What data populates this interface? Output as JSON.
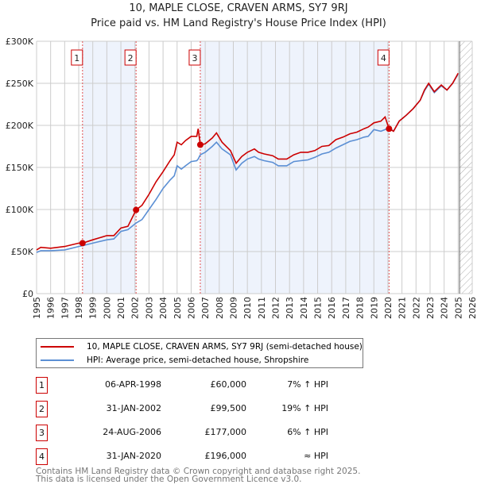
{
  "chart_data": {
    "type": "line",
    "title": "10, MAPLE CLOSE, CRAVEN ARMS, SY7 9RJ",
    "subtitle": "Price paid vs. HM Land Registry's House Price Index (HPI)",
    "xlim": [
      1995,
      2026
    ],
    "ylim": [
      0,
      300000
    ],
    "y_ticks": [
      {
        "v": 0,
        "label": "£0"
      },
      {
        "v": 50000,
        "label": "£50K"
      },
      {
        "v": 100000,
        "label": "£100K"
      },
      {
        "v": 150000,
        "label": "£150K"
      },
      {
        "v": 200000,
        "label": "£200K"
      },
      {
        "v": 250000,
        "label": "£250K"
      },
      {
        "v": 300000,
        "label": "£300K"
      }
    ],
    "x_ticks": [
      "1995",
      "1996",
      "1997",
      "1998",
      "1999",
      "2000",
      "2001",
      "2002",
      "2003",
      "2004",
      "2005",
      "2006",
      "2007",
      "2008",
      "2009",
      "2010",
      "2011",
      "2012",
      "2013",
      "2014",
      "2015",
      "2016",
      "2017",
      "2018",
      "2019",
      "2020",
      "2021",
      "2022",
      "2023",
      "2024",
      "2025",
      "2026"
    ],
    "forecast_start": 2025.1,
    "series": [
      {
        "name": "10, MAPLE CLOSE, CRAVEN ARMS, SY7 9RJ (semi-detached house)",
        "color": "#cc0000",
        "x": [
          1995,
          1995.3,
          1996,
          1997,
          1997.5,
          1998,
          1998.27,
          1999,
          2000,
          2000.5,
          2001,
          2001.5,
          2002.08,
          2002.5,
          2003,
          2003.5,
          2004,
          2004.5,
          2004.8,
          2005,
          2005.3,
          2005.6,
          2006,
          2006.4,
          2006.5,
          2006.65,
          2007,
          2007.5,
          2007.8,
          2008.2,
          2008.8,
          2009.2,
          2009.6,
          2010,
          2010.5,
          2010.8,
          2011.2,
          2011.8,
          2012.2,
          2012.8,
          2013.3,
          2013.8,
          2014.3,
          2014.8,
          2015.3,
          2015.8,
          2016.3,
          2016.8,
          2017.3,
          2017.8,
          2018.3,
          2018.6,
          2019,
          2019.5,
          2019.8,
          2020.08,
          2020.4,
          2020.8,
          2021.3,
          2021.8,
          2022.3,
          2022.6,
          2022.9,
          2023.3,
          2023.8,
          2024.2,
          2024.6,
          2025.0
        ],
        "y": [
          52000,
          55000,
          54000,
          56000,
          58000,
          60000,
          60000,
          64000,
          69000,
          69000,
          78000,
          80000,
          99500,
          105000,
          118000,
          133000,
          145000,
          158000,
          165000,
          180000,
          177000,
          182000,
          187000,
          187000,
          196000,
          177000,
          178000,
          185000,
          191000,
          180000,
          170000,
          155000,
          163000,
          168000,
          172000,
          168000,
          166000,
          164000,
          160000,
          160000,
          165000,
          168000,
          168000,
          170000,
          175000,
          176000,
          183000,
          186000,
          190000,
          192000,
          196000,
          198000,
          203000,
          205000,
          210000,
          196000,
          193000,
          205000,
          212000,
          220000,
          230000,
          242000,
          250000,
          240000,
          248000,
          242000,
          250000,
          262000
        ]
      },
      {
        "name": "HPI: Average price, semi-detached house, Shropshire",
        "color": "#5b8fd4",
        "x": [
          1995,
          1995.3,
          1996,
          1997,
          1997.5,
          1998,
          1998.27,
          1999,
          2000,
          2000.5,
          2001,
          2001.5,
          2002.08,
          2002.5,
          2003,
          2003.5,
          2004,
          2004.5,
          2004.8,
          2005,
          2005.3,
          2005.6,
          2006,
          2006.4,
          2006.5,
          2006.65,
          2007,
          2007.5,
          2007.8,
          2008.2,
          2008.8,
          2009.2,
          2009.6,
          2010,
          2010.5,
          2010.8,
          2011.2,
          2011.8,
          2012.2,
          2012.8,
          2013.3,
          2013.8,
          2014.3,
          2014.8,
          2015.3,
          2015.8,
          2016.3,
          2016.8,
          2017.3,
          2017.8,
          2018.3,
          2018.6,
          2019,
          2019.5,
          2019.8,
          2020.08,
          2020.4,
          2020.8,
          2021.3,
          2021.8,
          2022.3,
          2022.6,
          2022.9,
          2023.3,
          2023.8,
          2024.2,
          2024.6,
          2025.0
        ],
        "y": [
          49000,
          51000,
          51000,
          52000,
          54000,
          56000,
          57000,
          60000,
          64000,
          65000,
          74000,
          76000,
          84000,
          88000,
          100000,
          112000,
          125000,
          135000,
          140000,
          152000,
          148000,
          152000,
          157000,
          158000,
          160000,
          165000,
          168000,
          175000,
          180000,
          172000,
          165000,
          147000,
          155000,
          160000,
          163000,
          160000,
          158000,
          156000,
          152000,
          152000,
          157000,
          158000,
          159000,
          162000,
          166000,
          168000,
          173000,
          177000,
          181000,
          183000,
          186000,
          187000,
          195000,
          193000,
          195000,
          198000,
          193000,
          205000,
          212000,
          220000,
          230000,
          241000,
          249000,
          239000,
          247000,
          242000,
          250000,
          261000
        ]
      }
    ],
    "sales": [
      {
        "n": "1",
        "x": 2002.08,
        "xd": 1998.27,
        "y": 60000,
        "date": "06-APR-1998",
        "price": "£60,000",
        "hpi": "7% ↑ HPI"
      },
      {
        "n": "2",
        "x": 2002.08,
        "xd": 2002.08,
        "y": 99500,
        "date": "31-JAN-2002",
        "price": "£99,500",
        "hpi": "19% ↑ HPI"
      },
      {
        "n": "3",
        "x": 2006.65,
        "xd": 2006.65,
        "y": 177000,
        "date": "24-AUG-2006",
        "price": "£177,000",
        "hpi": "6% ↑ HPI"
      },
      {
        "n": "4",
        "x": 2020.08,
        "xd": 2020.08,
        "y": 196000,
        "date": "31-JAN-2020",
        "price": "£196,000",
        "hpi": "≈ HPI"
      }
    ]
  },
  "legend": [
    "10, MAPLE CLOSE, CRAVEN ARMS, SY7 9RJ (semi-detached house)",
    "HPI: Average price, semi-detached house, Shropshire"
  ],
  "footer": [
    "Contains HM Land Registry data © Crown copyright and database right 2025.",
    "This data is licensed under the Open Government Licence v3.0."
  ]
}
